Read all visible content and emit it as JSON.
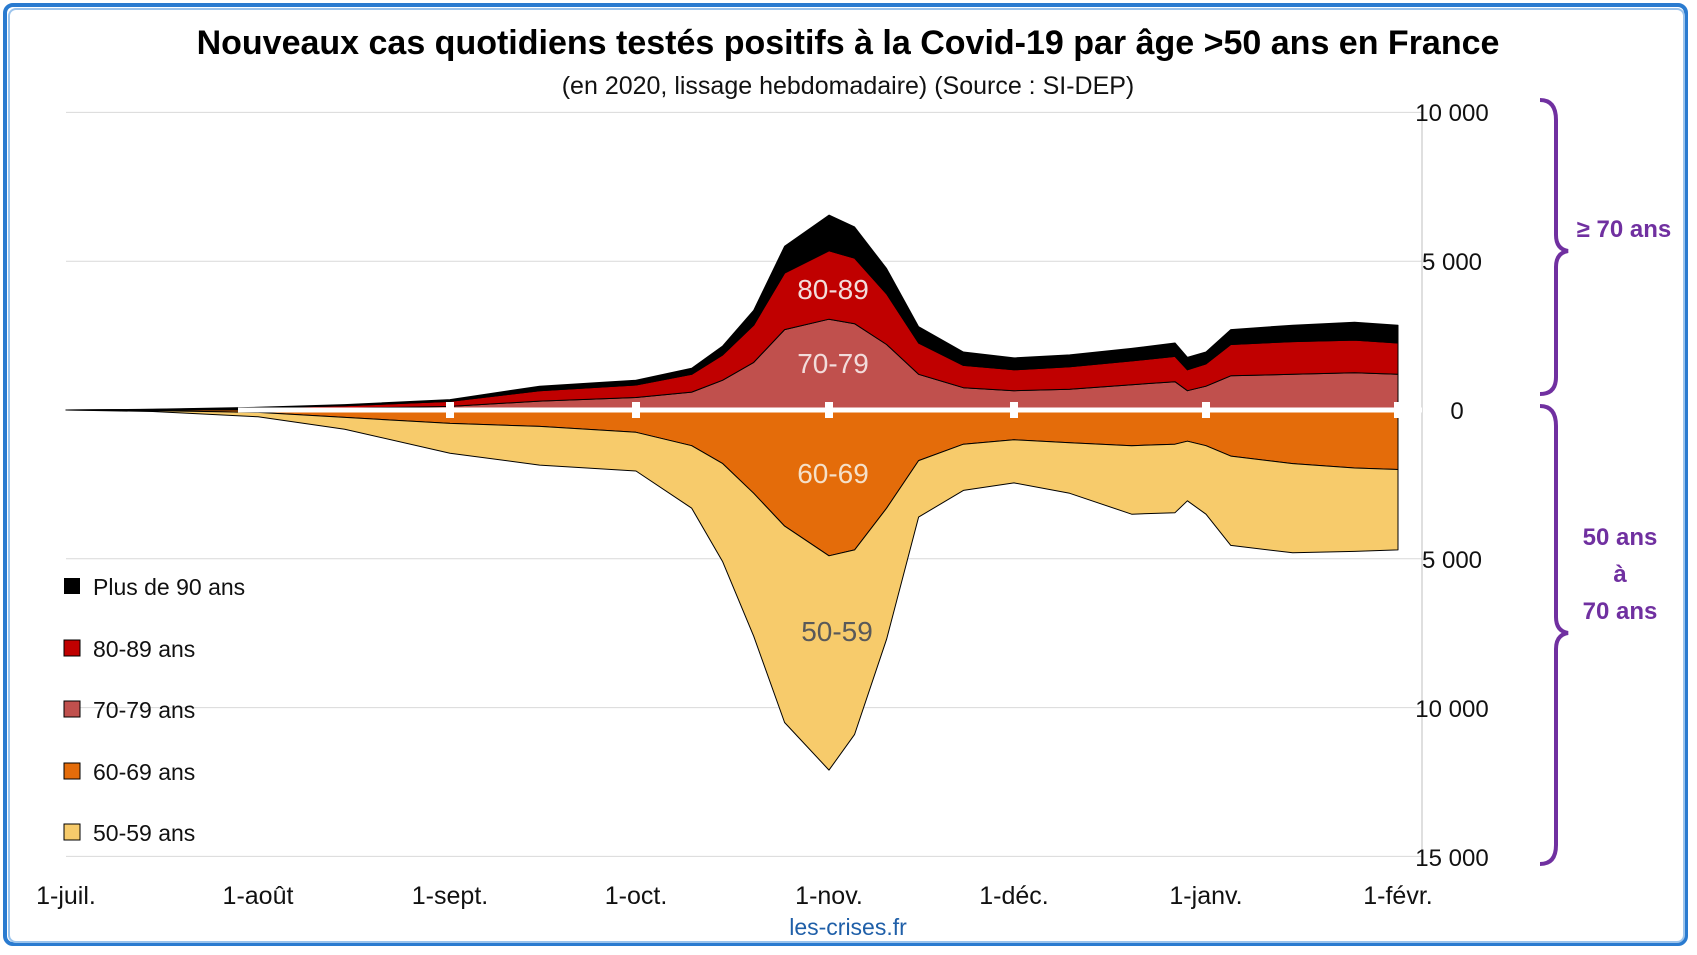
{
  "chart_data": {
    "type": "area",
    "title": "Nouveaux cas quotidiens testés positifs à la Covid-19 par âge >50 ans en France",
    "subtitle": "(en 2020, lissage hebdomadaire) (Source : SI-DEP)",
    "source": "les-crises.fr",
    "x_tick_labels": [
      "1-juil.",
      "1-août",
      "1-sept.",
      "1-oct.",
      "1-nov.",
      "1-déc.",
      "1-janv.",
      "1-févr."
    ],
    "y_tick_labels": [
      "10 000",
      "5 000",
      "0",
      "5 000",
      "10 000",
      "15 000"
    ],
    "y_tick_values": [
      10000,
      5000,
      0,
      -5000,
      -10000,
      -15000
    ],
    "ylim": [
      -15000,
      10000
    ],
    "x": [
      "07-01",
      "07-15",
      "08-01",
      "08-15",
      "09-01",
      "09-15",
      "10-01",
      "10-10",
      "10-15",
      "10-20",
      "10-25",
      "11-01",
      "11-05",
      "11-10",
      "11-15",
      "11-22",
      "12-01",
      "12-10",
      "12-20",
      "12-27",
      "12-29",
      "01-01",
      "01-05",
      "01-15",
      "01-25",
      "02-01"
    ],
    "series_up": [
      {
        "name": "70-79 ans",
        "color": "#c0504d",
        "values": [
          0,
          10,
          30,
          60,
          120,
          300,
          420,
          600,
          1000,
          1600,
          2700,
          3050,
          2900,
          2200,
          1200,
          750,
          650,
          700,
          850,
          950,
          650,
          800,
          1150,
          1200,
          1250,
          1200
        ]
      },
      {
        "name": "80-89 ans",
        "color": "#c00000",
        "values": [
          0,
          10,
          40,
          80,
          170,
          350,
          420,
          600,
          850,
          1250,
          1900,
          2300,
          2200,
          1700,
          1050,
          750,
          700,
          750,
          800,
          850,
          700,
          750,
          1050,
          1100,
          1100,
          1050
        ]
      },
      {
        "name": "Plus de 90 ans",
        "color": "#000000",
        "values": [
          0,
          5,
          20,
          40,
          60,
          150,
          160,
          200,
          300,
          500,
          900,
          1200,
          1050,
          850,
          550,
          450,
          400,
          400,
          420,
          450,
          420,
          400,
          500,
          550,
          600,
          600
        ]
      }
    ],
    "series_down": [
      {
        "name": "60-69 ans",
        "color": "#e46c0a",
        "values": [
          0,
          20,
          80,
          250,
          450,
          550,
          750,
          1200,
          1800,
          2800,
          3900,
          4900,
          4700,
          3300,
          1700,
          1150,
          1000,
          1100,
          1200,
          1150,
          1050,
          1200,
          1550,
          1800,
          1950,
          2000
        ]
      },
      {
        "name": "50-59 ans",
        "color": "#f7cb6b",
        "values": [
          0,
          30,
          150,
          400,
          1000,
          1300,
          1300,
          2100,
          3300,
          4800,
          6600,
          7200,
          6200,
          4400,
          1900,
          1550,
          1450,
          1700,
          2300,
          2300,
          2000,
          2300,
          3000,
          3000,
          2800,
          2700
        ]
      }
    ],
    "band_labels": [
      "80-89",
      "70-79",
      "60-69",
      "50-59"
    ],
    "legend": {
      "placement": "bottom-left",
      "items": [
        {
          "label": "Plus de 90 ans",
          "color": "#000000"
        },
        {
          "label": "80-89 ans",
          "color": "#c00000"
        },
        {
          "label": "70-79 ans",
          "color": "#c0504d"
        },
        {
          "label": "60-69 ans",
          "color": "#e46c0a"
        },
        {
          "label": "50-59 ans",
          "color": "#f7cb6b"
        }
      ]
    },
    "brackets": {
      "upper": "≥ 70 ans",
      "lower_line1": "50 ans",
      "lower_line2": "à",
      "lower_line3": "70 ans",
      "color": "#7030a0"
    },
    "grid": true
  }
}
